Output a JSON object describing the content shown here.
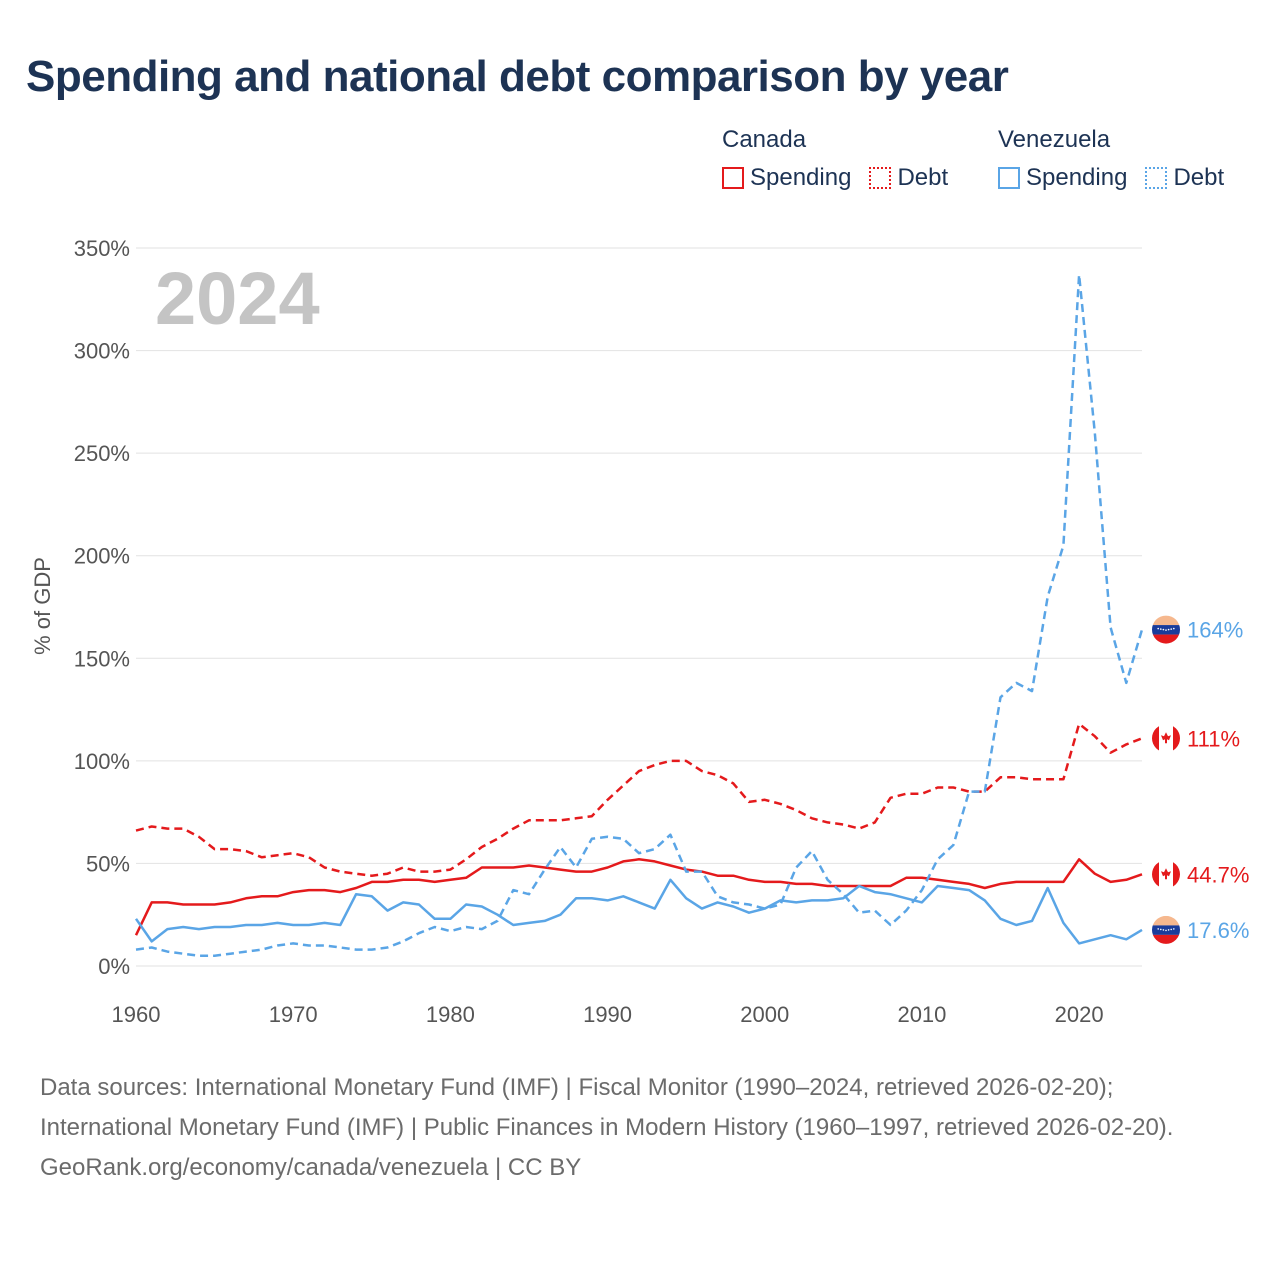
{
  "title": "Spending and national debt comparison by year",
  "legend": {
    "groups": [
      {
        "name": "Canada",
        "items": [
          {
            "label": "Spending",
            "style": "solid",
            "color": "#e41a1c"
          },
          {
            "label": "Debt",
            "style": "dotted",
            "color": "#e41a1c"
          }
        ]
      },
      {
        "name": "Venezuela",
        "items": [
          {
            "label": "Spending",
            "style": "solid",
            "color": "#5aa5e6"
          },
          {
            "label": "Debt",
            "style": "dotted",
            "color": "#5aa5e6"
          }
        ]
      }
    ]
  },
  "chart_data": {
    "type": "line",
    "year_watermark": "2024",
    "ylabel": "% of GDP",
    "xlabel": "",
    "xlim": [
      1960,
      2024
    ],
    "ylim": [
      0,
      350
    ],
    "x_ticks": [
      1960,
      1970,
      1980,
      1990,
      2000,
      2010,
      2020
    ],
    "y_ticks": [
      {
        "value": 0,
        "label": "0%"
      },
      {
        "value": 50,
        "label": "50%"
      },
      {
        "value": 100,
        "label": "100%"
      },
      {
        "value": 150,
        "label": "150%"
      },
      {
        "value": 200,
        "label": "200%"
      },
      {
        "value": 250,
        "label": "250%"
      },
      {
        "value": 300,
        "label": "300%"
      },
      {
        "value": 350,
        "label": "350%"
      }
    ],
    "series": [
      {
        "name": "Canada Debt",
        "country": "Canada",
        "color": "#e41a1c",
        "dash": "dashed",
        "end_label": "111%",
        "x": [
          1960,
          1961,
          1962,
          1963,
          1964,
          1965,
          1966,
          1967,
          1968,
          1969,
          1970,
          1971,
          1972,
          1973,
          1974,
          1975,
          1976,
          1977,
          1978,
          1979,
          1980,
          1981,
          1982,
          1983,
          1984,
          1985,
          1986,
          1987,
          1988,
          1989,
          1990,
          1991,
          1992,
          1993,
          1994,
          1995,
          1996,
          1997,
          1998,
          1999,
          2000,
          2001,
          2002,
          2003,
          2004,
          2005,
          2006,
          2007,
          2008,
          2009,
          2010,
          2011,
          2012,
          2013,
          2014,
          2015,
          2016,
          2017,
          2018,
          2019,
          2020,
          2021,
          2022,
          2023,
          2024
        ],
        "values": [
          66,
          68,
          67,
          67,
          63,
          57,
          57,
          56,
          53,
          54,
          55,
          53,
          48,
          46,
          45,
          44,
          45,
          48,
          46,
          46,
          47,
          52,
          58,
          62,
          67,
          71,
          71,
          71,
          72,
          73,
          81,
          88,
          95,
          98,
          100,
          100,
          95,
          93,
          89,
          80,
          81,
          79,
          76,
          72,
          70,
          69,
          67,
          70,
          82,
          84,
          84,
          87,
          87,
          85,
          85,
          92,
          92,
          91,
          91,
          91,
          118,
          112,
          104,
          108,
          111
        ]
      },
      {
        "name": "Canada Spending",
        "country": "Canada",
        "color": "#e41a1c",
        "dash": "solid",
        "end_label": "44.7%",
        "x": [
          1960,
          1961,
          1962,
          1963,
          1964,
          1965,
          1966,
          1967,
          1968,
          1969,
          1970,
          1971,
          1972,
          1973,
          1974,
          1975,
          1976,
          1977,
          1978,
          1979,
          1980,
          1981,
          1982,
          1983,
          1984,
          1985,
          1986,
          1987,
          1988,
          1989,
          1990,
          1991,
          1992,
          1993,
          1994,
          1995,
          1996,
          1997,
          1998,
          1999,
          2000,
          2001,
          2002,
          2003,
          2004,
          2005,
          2006,
          2007,
          2008,
          2009,
          2010,
          2011,
          2012,
          2013,
          2014,
          2015,
          2016,
          2017,
          2018,
          2019,
          2020,
          2021,
          2022,
          2023,
          2024
        ],
        "values": [
          15,
          31,
          31,
          30,
          30,
          30,
          31,
          33,
          34,
          34,
          36,
          37,
          37,
          36,
          38,
          41,
          41,
          42,
          42,
          41,
          42,
          43,
          48,
          48,
          48,
          49,
          48,
          47,
          46,
          46,
          48,
          51,
          52,
          51,
          49,
          47,
          46,
          44,
          44,
          42,
          41,
          41,
          40,
          40,
          39,
          39,
          39,
          39,
          39,
          43,
          43,
          42,
          41,
          40,
          38,
          40,
          41,
          41,
          41,
          41,
          52,
          45,
          41,
          42,
          44.7
        ]
      },
      {
        "name": "Venezuela Debt",
        "country": "Venezuela",
        "color": "#5aa5e6",
        "dash": "dashed",
        "end_label": "164%",
        "x": [
          1960,
          1961,
          1962,
          1963,
          1964,
          1965,
          1966,
          1967,
          1968,
          1969,
          1970,
          1971,
          1972,
          1973,
          1974,
          1975,
          1976,
          1977,
          1978,
          1979,
          1980,
          1981,
          1982,
          1983,
          1984,
          1985,
          1986,
          1987,
          1988,
          1989,
          1990,
          1991,
          1992,
          1993,
          1994,
          1995,
          1996,
          1997,
          1998,
          1999,
          2000,
          2001,
          2002,
          2003,
          2004,
          2005,
          2006,
          2007,
          2008,
          2009,
          2010,
          2011,
          2012,
          2013,
          2014,
          2015,
          2016,
          2017,
          2018,
          2019,
          2020,
          2021,
          2022,
          2023,
          2024
        ],
        "values": [
          8,
          9,
          7,
          6,
          5,
          5,
          6,
          7,
          8,
          10,
          11,
          10,
          10,
          9,
          8,
          8,
          9,
          12,
          16,
          19,
          17,
          19,
          18,
          22,
          37,
          35,
          47,
          58,
          48,
          62,
          63,
          62,
          55,
          57,
          64,
          46,
          46,
          34,
          31,
          30,
          28,
          30,
          48,
          56,
          42,
          35,
          26,
          27,
          20,
          27,
          37,
          52,
          59,
          85,
          85,
          131,
          138,
          134,
          180,
          205,
          337,
          260,
          165,
          138,
          164
        ]
      },
      {
        "name": "Venezuela Spending",
        "country": "Venezuela",
        "color": "#5aa5e6",
        "dash": "solid",
        "end_label": "17.6%",
        "x": [
          1960,
          1961,
          1962,
          1963,
          1964,
          1965,
          1966,
          1967,
          1968,
          1969,
          1970,
          1971,
          1972,
          1973,
          1974,
          1975,
          1976,
          1977,
          1978,
          1979,
          1980,
          1981,
          1982,
          1983,
          1984,
          1985,
          1986,
          1987,
          1988,
          1989,
          1990,
          1991,
          1992,
          1993,
          1994,
          1995,
          1996,
          1997,
          1998,
          1999,
          2000,
          2001,
          2002,
          2003,
          2004,
          2005,
          2006,
          2007,
          2008,
          2009,
          2010,
          2011,
          2012,
          2013,
          2014,
          2015,
          2016,
          2017,
          2018,
          2019,
          2020,
          2021,
          2022,
          2023,
          2024
        ],
        "values": [
          23,
          12,
          18,
          19,
          18,
          19,
          19,
          20,
          20,
          21,
          20,
          20,
          21,
          20,
          35,
          34,
          27,
          31,
          30,
          23,
          23,
          30,
          29,
          25,
          20,
          21,
          22,
          25,
          33,
          33,
          32,
          34,
          31,
          28,
          42,
          33,
          28,
          31,
          29,
          26,
          28,
          32,
          31,
          32,
          32,
          33,
          39,
          36,
          35,
          33,
          31,
          39,
          38,
          37,
          32,
          23,
          20,
          22,
          38,
          21,
          11,
          13,
          15,
          13,
          17.6
        ]
      }
    ]
  },
  "footer": {
    "sources": "Data sources: International Monetary Fund (IMF) | Fiscal Monitor (1990–2024, retrieved 2026-02-20); International Monetary Fund (IMF) | Public Finances in Modern History (1960–1997, retrieved 2026-02-20).",
    "credit": "GeoRank.org/economy/canada/venezuela | CC BY"
  }
}
